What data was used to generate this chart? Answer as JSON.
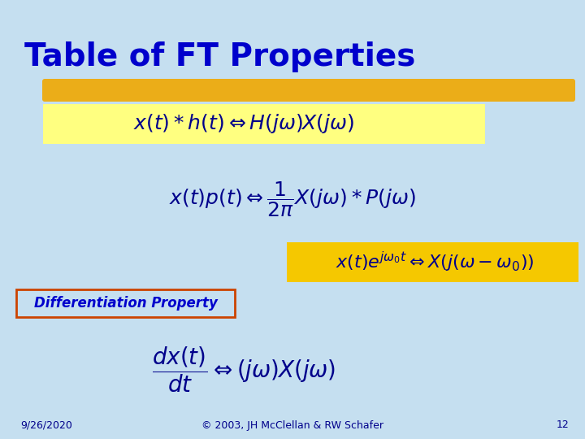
{
  "bg_color": "#c5dff0",
  "title": "Table of FT Properties",
  "title_color": "#0000cc",
  "title_fontsize": 28,
  "highlight_yellow": "#f5c800",
  "highlight_yellow_light": "#ffff80",
  "highlight_amber": "#f0a800",
  "formula_color": "#00008b",
  "formula_fontsize": 18,
  "small_formula_fontsize": 16,
  "diff_label": "Differentiation Property",
  "diff_box_color": "#cc4400",
  "footer_date": "9/26/2020",
  "footer_copy": "© 2003, JH McClellan & RW Schafer",
  "footer_page": "12",
  "footer_fontsize": 9
}
